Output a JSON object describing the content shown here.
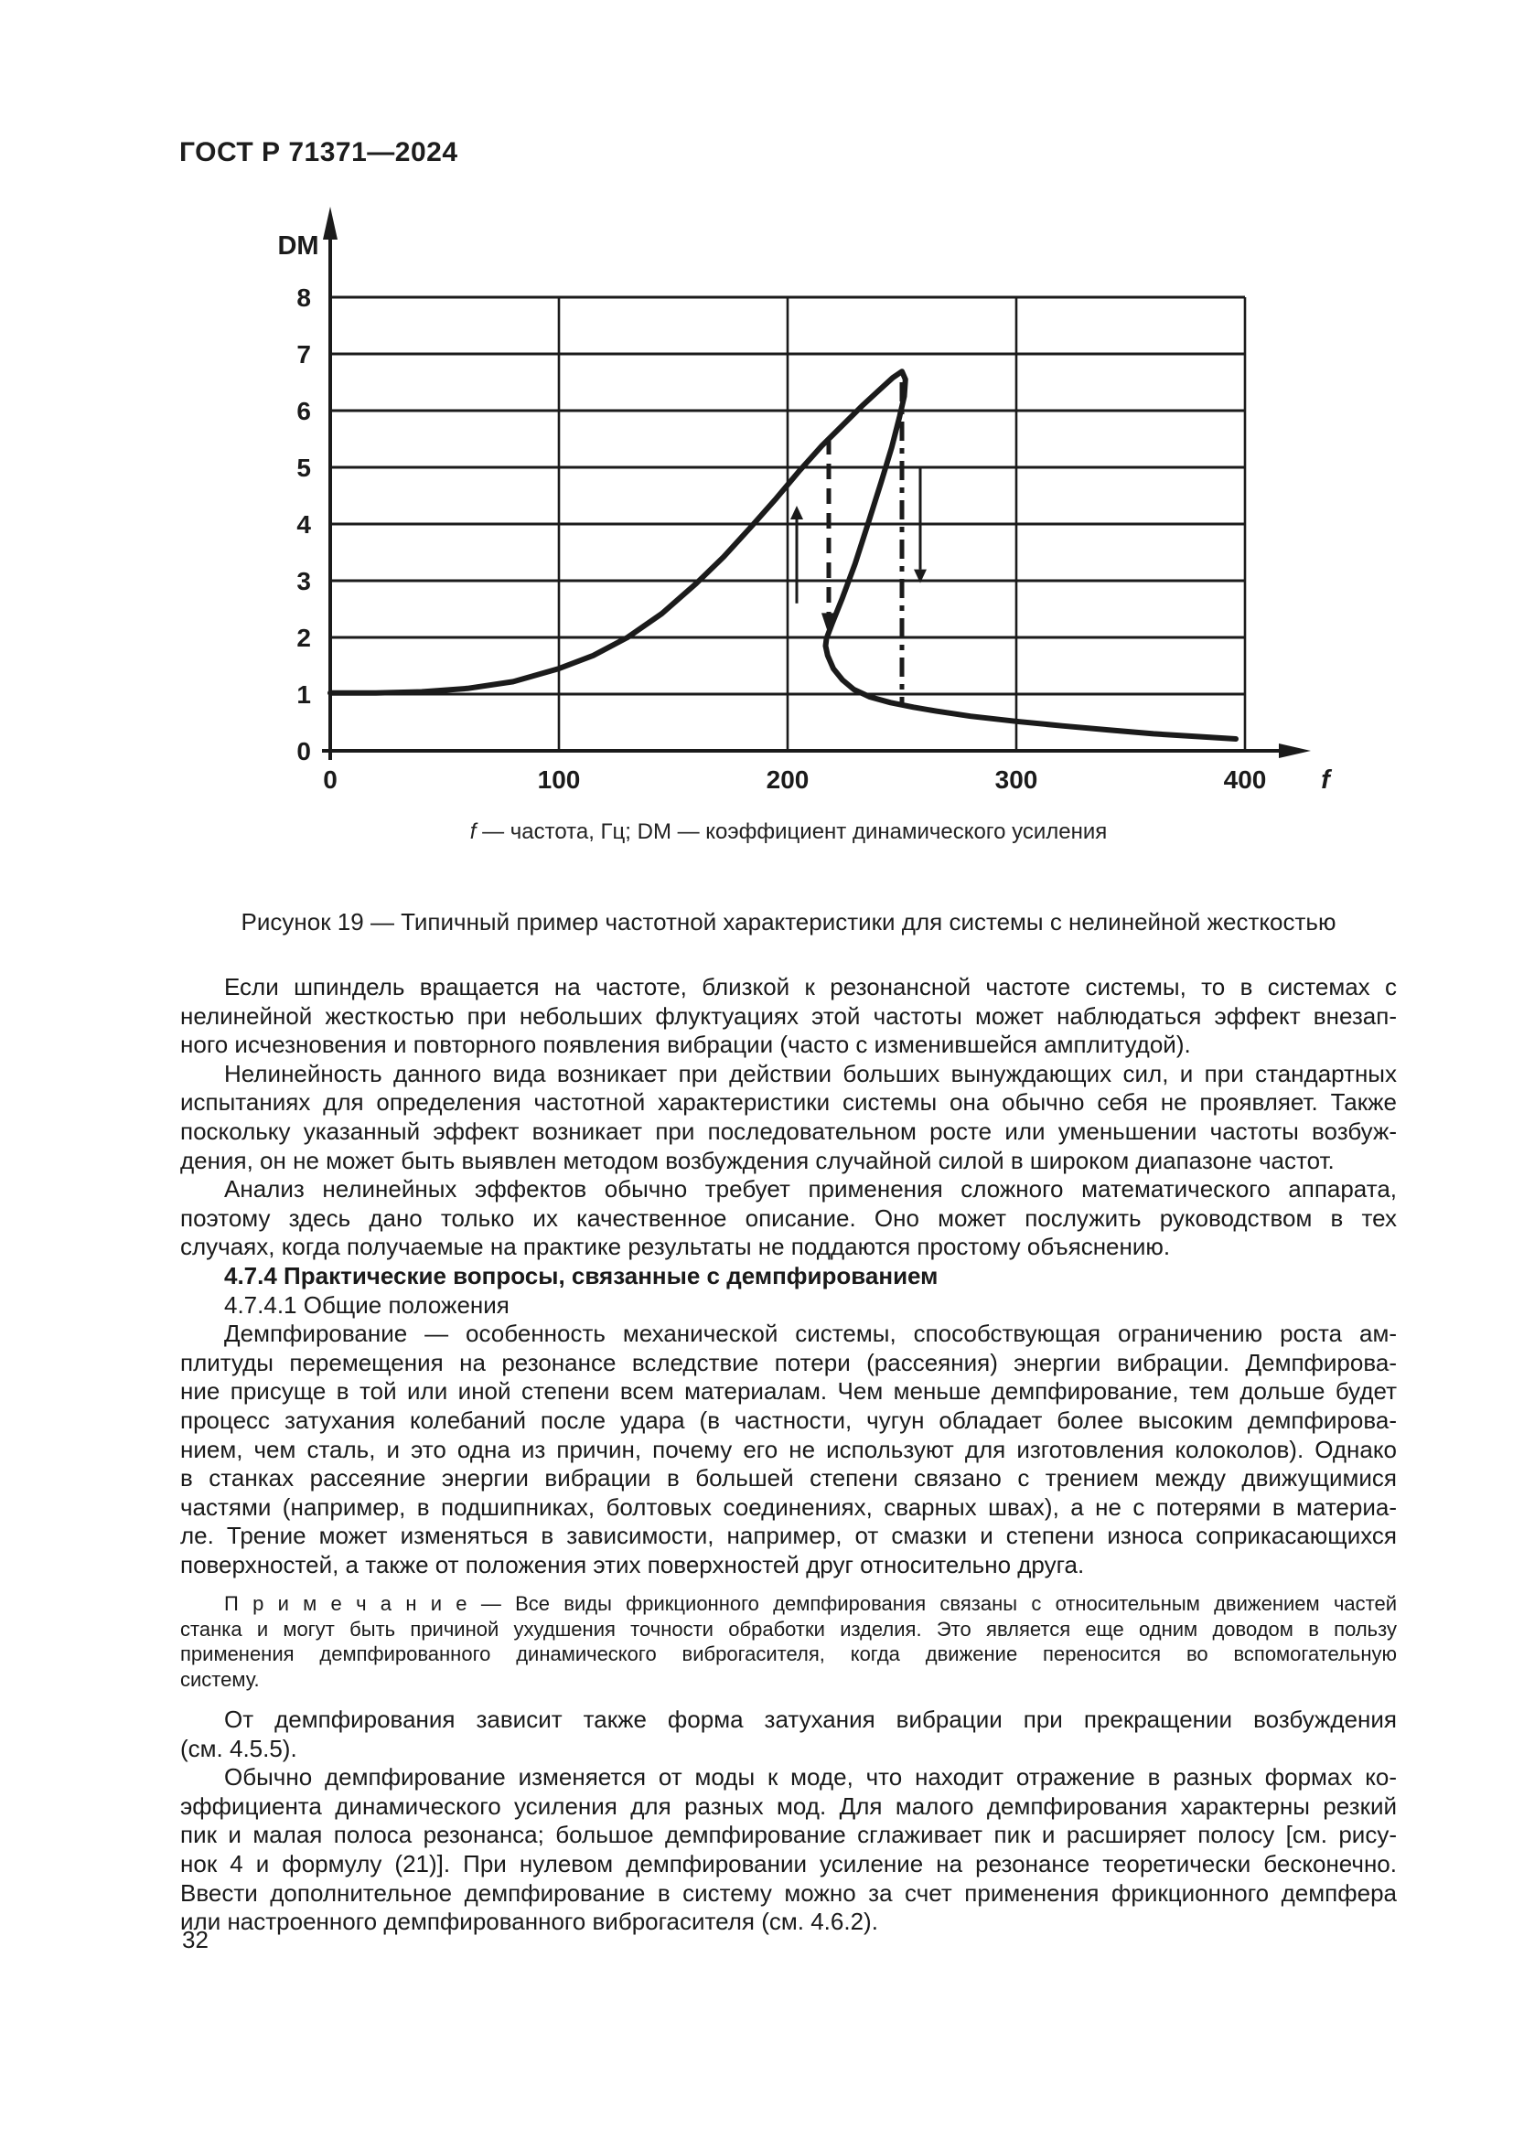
{
  "page": {
    "header": "ГОСТ Р 71371—2024",
    "page_number": "32"
  },
  "figure": {
    "axis_caption": {
      "f_symbol": "f",
      "f_text": " — частота, Гц; ",
      "dm_symbol": "DM",
      "dm_text": " — коэффициент динамического усиления"
    },
    "caption": "Рисунок 19 — Типичный пример частотной характеристики для системы с нелинейной жесткостью"
  },
  "chart_data": {
    "type": "line",
    "title": "",
    "xlabel": "f",
    "ylabel": "DM",
    "x_unit": "Гц",
    "xlim": [
      0,
      400
    ],
    "ylim": [
      0,
      8
    ],
    "x_ticks": [
      0,
      100,
      200,
      300,
      400
    ],
    "y_ticks": [
      0,
      1,
      2,
      3,
      4,
      5,
      6,
      7,
      8
    ],
    "grid": true,
    "legend": "none",
    "series": [
      {
        "name": "DM(f) frequency response with fold (hysteresis)",
        "points": [
          [
            0,
            1.02
          ],
          [
            20,
            1.02
          ],
          [
            40,
            1.04
          ],
          [
            60,
            1.1
          ],
          [
            80,
            1.22
          ],
          [
            100,
            1.45
          ],
          [
            115,
            1.68
          ],
          [
            130,
            2.0
          ],
          [
            145,
            2.42
          ],
          [
            160,
            2.95
          ],
          [
            172,
            3.42
          ],
          [
            184,
            3.95
          ],
          [
            195,
            4.45
          ],
          [
            205,
            4.93
          ],
          [
            215,
            5.38
          ],
          [
            225,
            5.78
          ],
          [
            233,
            6.1
          ],
          [
            240,
            6.36
          ],
          [
            246,
            6.58
          ],
          [
            250,
            6.69
          ],
          [
            251.5,
            6.55
          ],
          [
            251,
            6.25
          ],
          [
            249,
            5.9
          ],
          [
            245.5,
            5.35
          ],
          [
            241,
            4.75
          ],
          [
            235.5,
            4.05
          ],
          [
            229.5,
            3.3
          ],
          [
            224,
            2.7
          ],
          [
            219.5,
            2.25
          ],
          [
            217,
            1.98
          ],
          [
            216.6,
            1.85
          ],
          [
            217.5,
            1.68
          ],
          [
            220,
            1.45
          ],
          [
            224,
            1.25
          ],
          [
            229,
            1.08
          ],
          [
            236,
            0.95
          ],
          [
            245,
            0.85
          ],
          [
            255,
            0.77
          ],
          [
            265,
            0.7
          ],
          [
            280,
            0.61
          ],
          [
            300,
            0.52
          ],
          [
            320,
            0.44
          ],
          [
            340,
            0.37
          ],
          [
            360,
            0.3
          ],
          [
            380,
            0.25
          ],
          [
            396,
            0.21
          ]
        ]
      }
    ],
    "annotations": {
      "peak": [
        250,
        6.7
      ],
      "jump_lines": [
        {
          "x": 218,
          "dm_from": 2.3,
          "dm_to": 5.5,
          "style": "dashed",
          "arrowhead": "down"
        },
        {
          "x": 250,
          "dm_from": 0.82,
          "dm_to": 6.5,
          "style": "dash-dot",
          "arrowhead": "none"
        }
      ],
      "direction_arrows": [
        {
          "x": 204,
          "dm_from": 2.6,
          "dm_to": 4.08,
          "direction": "up"
        },
        {
          "x": 258,
          "dm_from": 5.0,
          "dm_to": 3.2,
          "direction": "down"
        }
      ]
    }
  },
  "content": {
    "paragraphs": [
      {
        "style": "body",
        "lines": [
          "Если шпиндель вращается на частоте, близкой к резонансной частоте системы, то в системах с",
          "нелинейной жесткостью при небольших флуктуациях этой частоты может наблюдаться эффект внезап-",
          "ного исчезновения и повторного появления вибрации (часто с изменившейся амплитудой)."
        ]
      },
      {
        "style": "body",
        "lines": [
          "Нелинейность данного вида возникает при действии больших вынуждающих сил, и при стандартных",
          "испытаниях для определения частотной характеристики системы она обычно себя не проявляет. Также",
          "поскольку указанный эффект возникает при последовательном росте или уменьшении частоты возбуж-",
          "дения, он не может быть выявлен методом возбуждения случайной силой в широком диапазоне частот."
        ]
      },
      {
        "style": "body",
        "lines": [
          "Анализ нелинейных эффектов обычно требует применения сложного математического аппарата,",
          "поэтому здесь дано только их качественное описание. Оно может послужить руководством в тех",
          "случаях, когда получаемые на практике результаты не поддаются простому объяснению."
        ]
      },
      {
        "style": "heading",
        "lines": [
          "4.7.4 Практические вопросы, связанные с демпфированием"
        ]
      },
      {
        "style": "subheading",
        "lines": [
          "4.7.4.1 Общие положения"
        ]
      },
      {
        "style": "body",
        "lines": [
          "Демпфирование — особенность механической системы, способствующая ограничению роста ам-",
          "плитуды перемещения на резонансе вследствие потери (рассеяния) энергии вибрации. Демпфирова-",
          "ние присуще в той или иной степени всем материалам. Чем меньше демпфирование, тем дольше будет",
          "процесс затухания колебаний после удара (в частности, чугун обладает более высоким демпфирова-",
          "нием, чем сталь, и это одна из причин, почему его не используют для изготовления колоколов). Однако",
          "в станках рассеяние энергии вибрации в большей степени связано с трением между движущимися",
          "частями (например, в подшипниках, болтовых соединениях, сварных швах), а не с потерями в материа-",
          "ле. Трение может изменяться в зависимости, например, от смазки и степени износа соприкасающихся",
          "поверхностей, а также от положения этих поверхностей друг относительно друга."
        ]
      },
      {
        "style": "note",
        "lines": [
          "П р и м е ч а н и е — Все виды фрикционного демпфирования связаны с относительным движением частей",
          "станка и могут быть причиной ухудшения точности обработки изделия. Это является еще одним доводом в пользу",
          "применения демпфированного динамического виброгасителя, когда движение переносится во вспомогательную",
          "систему."
        ]
      },
      {
        "style": "body",
        "lines": [
          "От демпфирования зависит также форма затухания вибрации при прекращении возбуждения",
          "(см. 4.5.5)."
        ]
      },
      {
        "style": "body",
        "lines": [
          "Обычно демпфирование изменяется от моды к моде, что находит отражение в разных формах ко-",
          "эффициента динамического усиления для разных мод. Для малого демпфирования характерны резкий",
          "пик и малая полоса резонанса; большое демпфирование сглаживает пик и расширяет полосу [см. рису-",
          "нок 4 и формулу (21)]. При нулевом демпфировании усиление на резонансе теоретически бесконечно.",
          "Ввести дополнительное демпфирование в систему можно за счет применения фрикционного демпфера",
          "или настроенного демпфированного виброгасителя (см. 4.6.2)."
        ]
      }
    ]
  }
}
